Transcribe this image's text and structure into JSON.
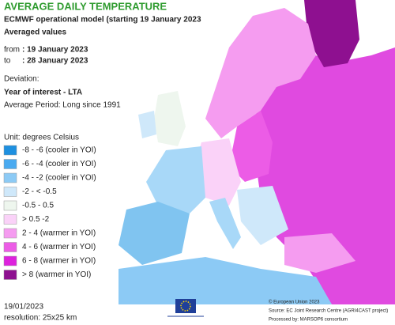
{
  "header": {
    "title": "AVERAGE DAILY TEMPERATURE",
    "subtitle": "ECMWF operational model (starting 19 January 2023",
    "averaged": "Averaged values",
    "from_label": "from",
    "from_value": ": 19 January 2023",
    "to_label": "to",
    "to_value": ": 28 January 2023",
    "deviation": "Deviation:",
    "deviation_value": "Year of interest - LTA",
    "period": "Average Period: Long since 1991"
  },
  "legend": {
    "unit": "Unit: degrees Celsius",
    "items": [
      {
        "label": "-8 - -6 (cooler in YOI)",
        "color": "#1e90e0"
      },
      {
        "label": "-6 - -4 (cooler in YOI)",
        "color": "#4aaaf0"
      },
      {
        "label": "-4 - -2 (cooler in YOI)",
        "color": "#8ccaf5"
      },
      {
        "label": "-2 - < -0.5",
        "color": "#cfe8fa"
      },
      {
        "label": "-0.5 - 0.5",
        "color": "#eef6ee"
      },
      {
        "label": "> 0.5 -2",
        "color": "#fad2f8"
      },
      {
        "label": "2 - 4 (warmer in YOI)",
        "color": "#f59cf0"
      },
      {
        "label": "4 - 6 (warmer in YOI)",
        "color": "#ec5ce6"
      },
      {
        "label": "6 - 8 (warmer in YOI)",
        "color": "#dd22dd"
      },
      {
        "label": "> 8 (warmer in YOI)",
        "color": "#8e1090"
      }
    ]
  },
  "footer": {
    "date": "19/01/2023",
    "resolution": "resolution: 25x25 km",
    "copyright": "© European Union 2023",
    "source": "Source: EC Joint Research Centre (AGRI4CAST project)",
    "processed": "Processed by: MARSOP6 consortium"
  }
}
